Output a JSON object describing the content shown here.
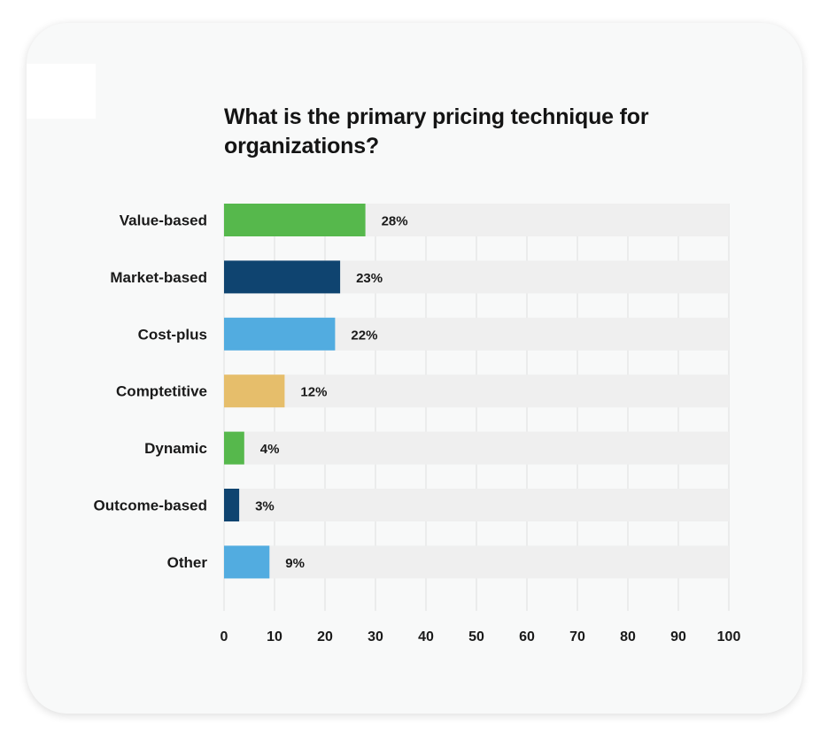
{
  "chart_data": {
    "type": "bar",
    "orientation": "horizontal",
    "title": "What is the primary pricing technique for organizations?",
    "categories": [
      "Value-based",
      "Market-based",
      "Cost-plus",
      "Comptetitive",
      "Dynamic",
      "Outcome-based",
      "Other"
    ],
    "values": [
      28,
      23,
      22,
      12,
      4,
      3,
      9
    ],
    "value_labels": [
      "28%",
      "23%",
      "22%",
      "12%",
      "4%",
      "3%",
      "9%"
    ],
    "colors": [
      "#56b84c",
      "#0f4470",
      "#52ace0",
      "#e6be6b",
      "#56b84c",
      "#0f4470",
      "#52ace0"
    ],
    "track_color": "#efefef",
    "xlim": [
      0,
      100
    ],
    "xticks": [
      0,
      10,
      20,
      30,
      40,
      50,
      60,
      70,
      80,
      90,
      100
    ],
    "xtick_labels": [
      "0",
      "10",
      "20",
      "30",
      "40",
      "50",
      "60",
      "70",
      "80",
      "90",
      "100"
    ],
    "grid": true,
    "legend": "none"
  }
}
